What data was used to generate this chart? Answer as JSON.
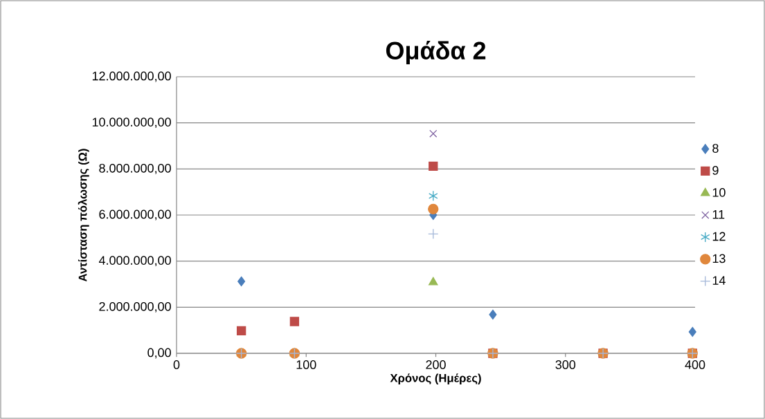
{
  "chart_data": {
    "type": "scatter",
    "title": "Ομάδα 2",
    "xlabel": "Χρόνος (Ημέρες)",
    "ylabel": "Αντίσταση πόλωσης (Ω)",
    "x": [
      50,
      91,
      198,
      244,
      329,
      398
    ],
    "series": [
      {
        "name": "8",
        "color": "#4a7ebb",
        "marker": "diamond",
        "values": [
          3120000,
          null,
          6000000,
          1680000,
          null,
          930000
        ]
      },
      {
        "name": "9",
        "color": "#be4b48",
        "marker": "square",
        "values": [
          980000,
          1380000,
          8120000,
          0,
          0,
          0
        ]
      },
      {
        "name": "10",
        "color": "#98b954",
        "marker": "triangle",
        "values": [
          0,
          0,
          3080000,
          0,
          0,
          0
        ]
      },
      {
        "name": "11",
        "color": "#7d60a0",
        "marker": "cross",
        "values": [
          null,
          null,
          9530000,
          null,
          null,
          null
        ]
      },
      {
        "name": "12",
        "color": "#46aac5",
        "values": [
          null,
          null,
          6830000,
          null,
          null,
          null
        ]
      },
      {
        "name": "13",
        "color": "#e0873c",
        "marker": "circle",
        "values": [
          0,
          0,
          6260000,
          0,
          0,
          0
        ]
      },
      {
        "name": "14",
        "color": "#a5b8d9",
        "marker": "plus",
        "values": [
          0,
          0,
          5180000,
          0,
          0,
          0
        ]
      }
    ],
    "xlim": [
      0,
      400
    ],
    "xticks": [
      0,
      100,
      200,
      300,
      400
    ],
    "ylim": [
      0,
      12000000
    ],
    "yticks": [
      {
        "value": 0,
        "label": "0,00"
      },
      {
        "value": 2000000,
        "label": "2.000.000,00"
      },
      {
        "value": 4000000,
        "label": "4.000.000,00"
      },
      {
        "value": 6000000,
        "label": "6.000.000,00"
      },
      {
        "value": 8000000,
        "label": "8.000.000,00"
      },
      {
        "value": 10000000,
        "label": "10.000.000,00"
      },
      {
        "value": 12000000,
        "label": "12.000.000,00"
      }
    ],
    "grid": "y",
    "legend": "right"
  }
}
